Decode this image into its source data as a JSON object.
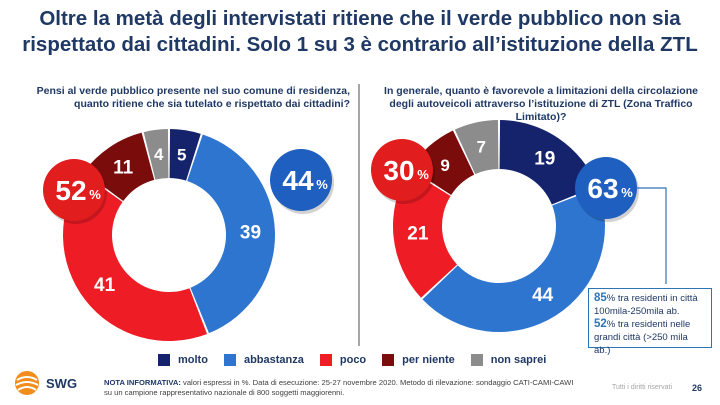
{
  "title_line1": "Oltre la metà degli intervistati ritiene che il verde pubblico non sia",
  "title_line2": "rispettato dai cittadini. Solo 1 su 3 è contrario all’istituzione della ZTL",
  "question_left_line1": "Pensi al verde pubblico presente nel suo comune di residenza,",
  "question_left_line2": "quanto ritiene che sia tutelato e rispettato dai cittadini?",
  "question_right_line1": "In generale, quanto è favorevole a limitazioni della circolazione",
  "question_right_line2": "degli autoveicoli attraverso l’istituzione di ZTL (Zona Traffico",
  "question_right_line3": "Limitato)?",
  "colors": {
    "molto": "#14236b",
    "abbastanza": "#2e75d0",
    "poco": "#ee1c25",
    "per_niente": "#7b0c0c",
    "non_saprei": "#8c8c8c",
    "neg_badge": "#e11d1d",
    "pos_badge": "#1f5fbf"
  },
  "chart_data": [
    {
      "type": "pie",
      "donut": true,
      "categories": [
        "molto",
        "abbastanza",
        "poco",
        "per niente",
        "non saprei"
      ],
      "values": [
        5,
        39,
        41,
        11,
        4
      ],
      "summary_negative": "52",
      "summary_positive": "44",
      "percent_sign": "%"
    },
    {
      "type": "pie",
      "donut": true,
      "categories": [
        "molto",
        "abbastanza",
        "poco",
        "per niente",
        "non saprei"
      ],
      "values": [
        19,
        44,
        21,
        9,
        7
      ],
      "summary_negative": "30",
      "summary_positive": "63",
      "percent_sign": "%"
    }
  ],
  "callout": {
    "line1_num": "85",
    "line1_text": "% tra residenti in città",
    "line2": "100mila-250mila ab.",
    "line3_num": "52",
    "line3_text": "% tra residenti nelle",
    "line4": "grandi città (>250 mila ab.)"
  },
  "legend": [
    "molto",
    "abbastanza",
    "poco",
    "per niente",
    "non saprei"
  ],
  "logo_text": "SWG",
  "note_label": "NOTA INFORMATIVA:",
  "note_text": " valori espressi in %. Data di esecuzione: 25-27 novembre 2020. Metodo di rilevazione: sondaggio CATI-CAMI-CAWI su un campione rappresentativo nazionale di 800 soggetti maggiorenni.",
  "rights": "Tutti i diritti riservati",
  "page_number": "26"
}
